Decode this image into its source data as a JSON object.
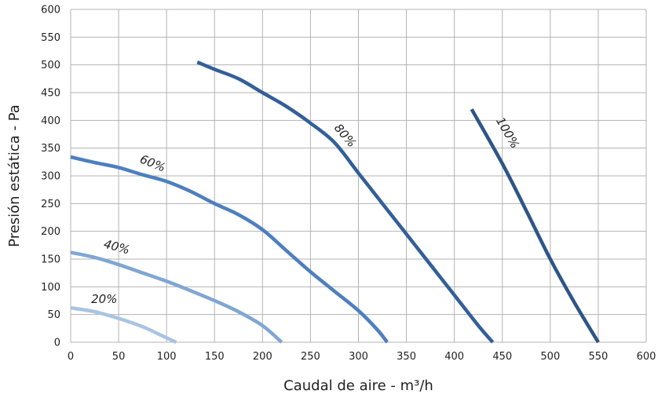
{
  "chart_data": {
    "type": "line",
    "title": "",
    "xlabel": "Caudal de aire - m³/h",
    "ylabel": "Presión estática - Pa",
    "xlim": [
      0,
      600
    ],
    "ylim": [
      0,
      600
    ],
    "xticks": [
      "0",
      "50",
      "100",
      "150",
      "200",
      "250",
      "300",
      "350",
      "400",
      "450",
      "500",
      "550",
      "600"
    ],
    "yticks": [
      "0",
      "50",
      "100",
      "150",
      "200",
      "250",
      "300",
      "350",
      "400",
      "450",
      "500",
      "550",
      "600"
    ],
    "grid": true,
    "legend": "none",
    "series": [
      {
        "name": "20%",
        "color": "#a9c4e2",
        "points": [
          [
            0,
            62
          ],
          [
            25,
            55
          ],
          [
            50,
            43
          ],
          [
            75,
            28
          ],
          [
            95,
            12
          ],
          [
            110,
            0
          ]
        ]
      },
      {
        "name": "40%",
        "color": "#80a6d2",
        "points": [
          [
            0,
            162
          ],
          [
            25,
            153
          ],
          [
            50,
            140
          ],
          [
            75,
            125
          ],
          [
            100,
            110
          ],
          [
            125,
            93
          ],
          [
            150,
            75
          ],
          [
            175,
            55
          ],
          [
            200,
            30
          ],
          [
            220,
            0
          ]
        ]
      },
      {
        "name": "60%",
        "color": "#4d7fc0",
        "points": [
          [
            0,
            334
          ],
          [
            25,
            324
          ],
          [
            50,
            315
          ],
          [
            75,
            302
          ],
          [
            100,
            290
          ],
          [
            125,
            272
          ],
          [
            150,
            250
          ],
          [
            175,
            230
          ],
          [
            200,
            203
          ],
          [
            225,
            165
          ],
          [
            250,
            127
          ],
          [
            275,
            92
          ],
          [
            300,
            57
          ],
          [
            320,
            22
          ],
          [
            330,
            0
          ]
        ]
      },
      {
        "name": "80%",
        "color": "#335f99",
        "points": [
          [
            132,
            505
          ],
          [
            150,
            492
          ],
          [
            175,
            475
          ],
          [
            200,
            450
          ],
          [
            225,
            425
          ],
          [
            250,
            395
          ],
          [
            275,
            360
          ],
          [
            300,
            305
          ],
          [
            325,
            250
          ],
          [
            350,
            195
          ],
          [
            375,
            140
          ],
          [
            400,
            85
          ],
          [
            425,
            30
          ],
          [
            440,
            0
          ]
        ]
      },
      {
        "name": "100%",
        "color": "#2d5587",
        "points": [
          [
            418,
            420
          ],
          [
            450,
            322
          ],
          [
            475,
            237
          ],
          [
            500,
            150
          ],
          [
            525,
            72
          ],
          [
            550,
            0
          ]
        ]
      }
    ],
    "labels": [
      {
        "text": "20%",
        "x": 35,
        "y": 71,
        "rotate": 0
      },
      {
        "text": "40%",
        "x": 47,
        "y": 165,
        "rotate": 15
      },
      {
        "text": "60%",
        "x": 84,
        "y": 316,
        "rotate": 22
      },
      {
        "text": "80%",
        "x": 283,
        "y": 368,
        "rotate": 50
      },
      {
        "text": "100%",
        "x": 452,
        "y": 374,
        "rotate": 60
      }
    ]
  }
}
